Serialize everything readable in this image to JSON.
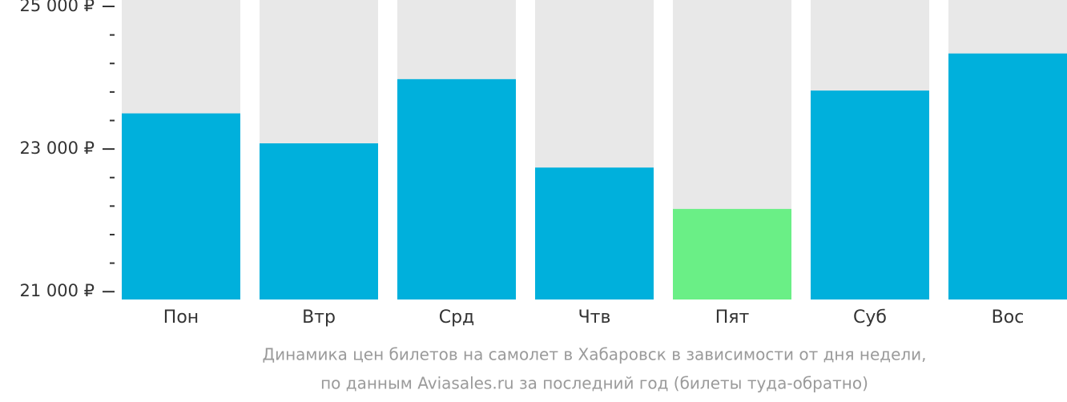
{
  "chart_data": {
    "type": "bar",
    "title": [
      "Динамика цен билетов на самолет в Хабаровск в зависимости от дня недели,",
      "по данным Aviasales.ru за последний год (билеты туда-обратно)"
    ],
    "categories": [
      "Пон",
      "Втр",
      "Срд",
      "Чтв",
      "Пят",
      "Суб",
      "Вос"
    ],
    "values": [
      23500,
      23080,
      23980,
      22740,
      22160,
      23820,
      24340
    ],
    "colors": [
      "#00b0dc",
      "#00b0dc",
      "#00b0dc",
      "#00b0dc",
      "#6aef86",
      "#00b0dc",
      "#00b0dc"
    ],
    "background_color": "#e8e8e8",
    "ylim": [
      20890,
      25090
    ],
    "yticks": [
      {
        "value": 21000,
        "label": "21 000 ₽"
      },
      {
        "value": 23000,
        "label": "23 000 ₽"
      },
      {
        "value": 25000,
        "label": "25 000 ₽"
      }
    ],
    "minor_yticks": [
      21400,
      21800,
      22200,
      22600,
      23400,
      23800,
      24200,
      24600
    ]
  }
}
